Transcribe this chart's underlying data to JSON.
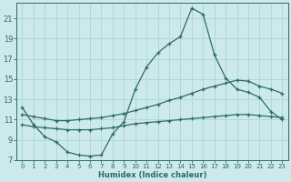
{
  "xlabel": "Humidex (Indice chaleur)",
  "bg_color": "#cce9ec",
  "grid_color": "#b0d8dc",
  "line_color": "#2e6b65",
  "xlim": [
    -0.5,
    23.5
  ],
  "ylim": [
    7,
    22.5
  ],
  "yticks": [
    7,
    9,
    11,
    13,
    15,
    17,
    19,
    21
  ],
  "xticks": [
    0,
    1,
    2,
    3,
    4,
    5,
    6,
    7,
    8,
    9,
    10,
    11,
    12,
    13,
    14,
    15,
    16,
    17,
    18,
    19,
    20,
    21,
    22,
    23
  ],
  "curve_top_x": [
    0,
    1,
    2,
    3,
    4,
    5,
    6,
    7,
    8,
    9,
    10,
    11,
    12,
    13,
    14,
    15,
    16,
    17,
    18,
    19,
    20,
    21,
    22,
    23
  ],
  "curve_top_y": [
    12.2,
    10.5,
    9.3,
    8.8,
    7.8,
    7.5,
    7.4,
    7.5,
    9.6,
    10.8,
    14.0,
    16.2,
    17.6,
    18.5,
    19.2,
    22.0,
    21.4,
    17.4,
    15.1,
    14.0,
    13.7,
    13.2,
    11.8,
    11.0
  ],
  "curve_mid_x": [
    0,
    1,
    2,
    3,
    4,
    5,
    6,
    7,
    8,
    9,
    10,
    11,
    12,
    13,
    14,
    15,
    16,
    17,
    18,
    19,
    20,
    21,
    22,
    23
  ],
  "curve_mid_y": [
    11.5,
    11.3,
    11.1,
    10.9,
    10.9,
    11.0,
    11.1,
    11.2,
    11.4,
    11.6,
    11.9,
    12.2,
    12.5,
    12.9,
    13.2,
    13.6,
    14.0,
    14.3,
    14.6,
    14.9,
    14.8,
    14.3,
    14.0,
    13.6
  ],
  "curve_bot_x": [
    0,
    1,
    2,
    3,
    4,
    5,
    6,
    7,
    8,
    9,
    10,
    11,
    12,
    13,
    14,
    15,
    16,
    17,
    18,
    19,
    20,
    21,
    22,
    23
  ],
  "curve_bot_y": [
    10.5,
    10.3,
    10.2,
    10.1,
    10.0,
    10.0,
    10.0,
    10.1,
    10.2,
    10.4,
    10.6,
    10.7,
    10.8,
    10.9,
    11.0,
    11.1,
    11.2,
    11.3,
    11.4,
    11.5,
    11.5,
    11.4,
    11.3,
    11.2
  ]
}
